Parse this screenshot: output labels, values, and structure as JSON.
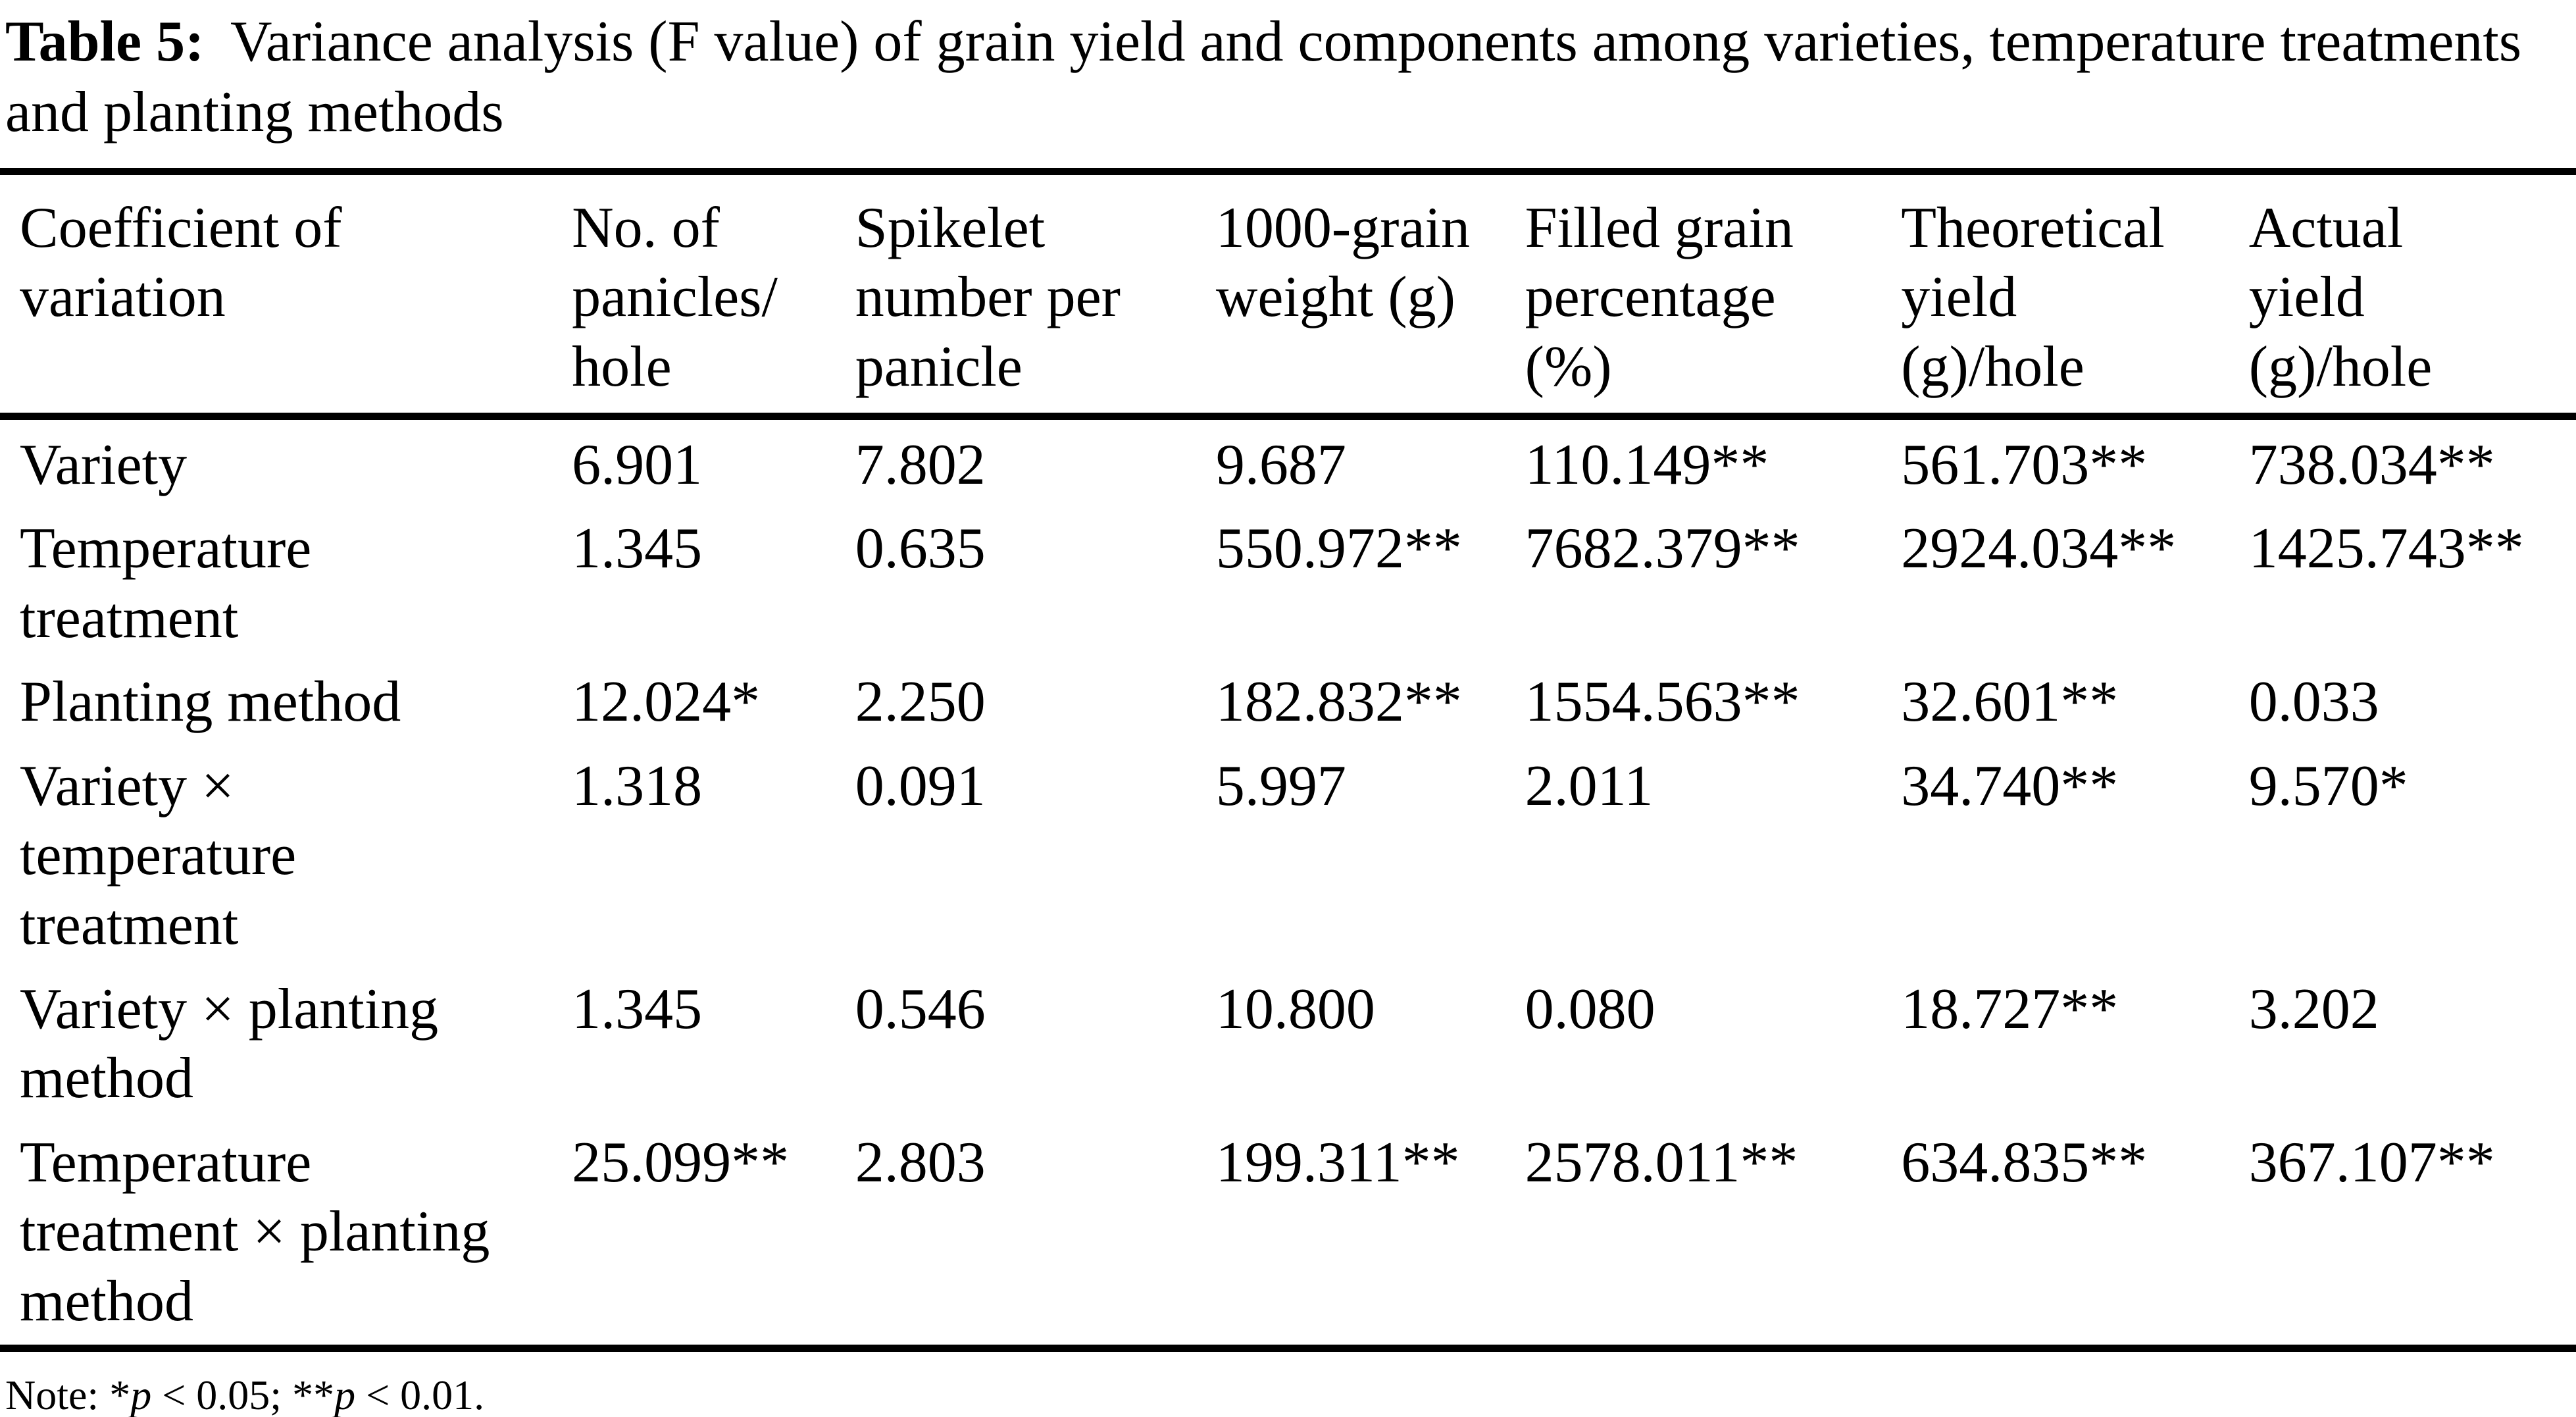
{
  "caption": {
    "label": "Table 5:",
    "text": "Variance analysis (F value) of grain yield and components among varieties, temperature treatments\nand planting methods"
  },
  "table": {
    "columns": [
      "Coefficient of\nvariation",
      "No. of\npanicles/\nhole",
      "Spikelet\nnumber per\npanicle",
      "1000-grain\nweight (g)",
      "Filled grain\npercentage\n(%)",
      "Theoretical\nyield\n(g)/hole",
      "Actual\nyield\n(g)/hole"
    ],
    "rows": [
      {
        "label": "Variety",
        "values": [
          "6.901",
          "7.802",
          "9.687",
          "110.149**",
          "561.703**",
          "738.034**"
        ]
      },
      {
        "label": "Temperature\ntreatment",
        "values": [
          "1.345",
          "0.635",
          "550.972**",
          "7682.379**",
          "2924.034**",
          "1425.743**"
        ]
      },
      {
        "label": "Planting method",
        "values": [
          "12.024*",
          "2.250",
          "182.832**",
          "1554.563**",
          "32.601**",
          "0.033"
        ]
      },
      {
        "label": "Variety ×\ntemperature\ntreatment",
        "values": [
          "1.318",
          "0.091",
          "5.997",
          "2.011",
          "34.740**",
          "9.570*"
        ]
      },
      {
        "label": "Variety × planting\nmethod",
        "values": [
          "1.345",
          "0.546",
          "10.800",
          "0.080",
          "18.727**",
          "3.202"
        ]
      },
      {
        "label": "Temperature\ntreatment × planting\nmethod",
        "values": [
          "25.099**",
          "2.803",
          "199.311**",
          "2578.011**",
          "634.835**",
          "367.107**"
        ]
      }
    ]
  },
  "note": {
    "segments": [
      "Note: *",
      "p",
      " < 0.05; **",
      "p",
      " < 0.01."
    ]
  },
  "colors": {
    "text": "#000000",
    "background": "#ffffff"
  }
}
